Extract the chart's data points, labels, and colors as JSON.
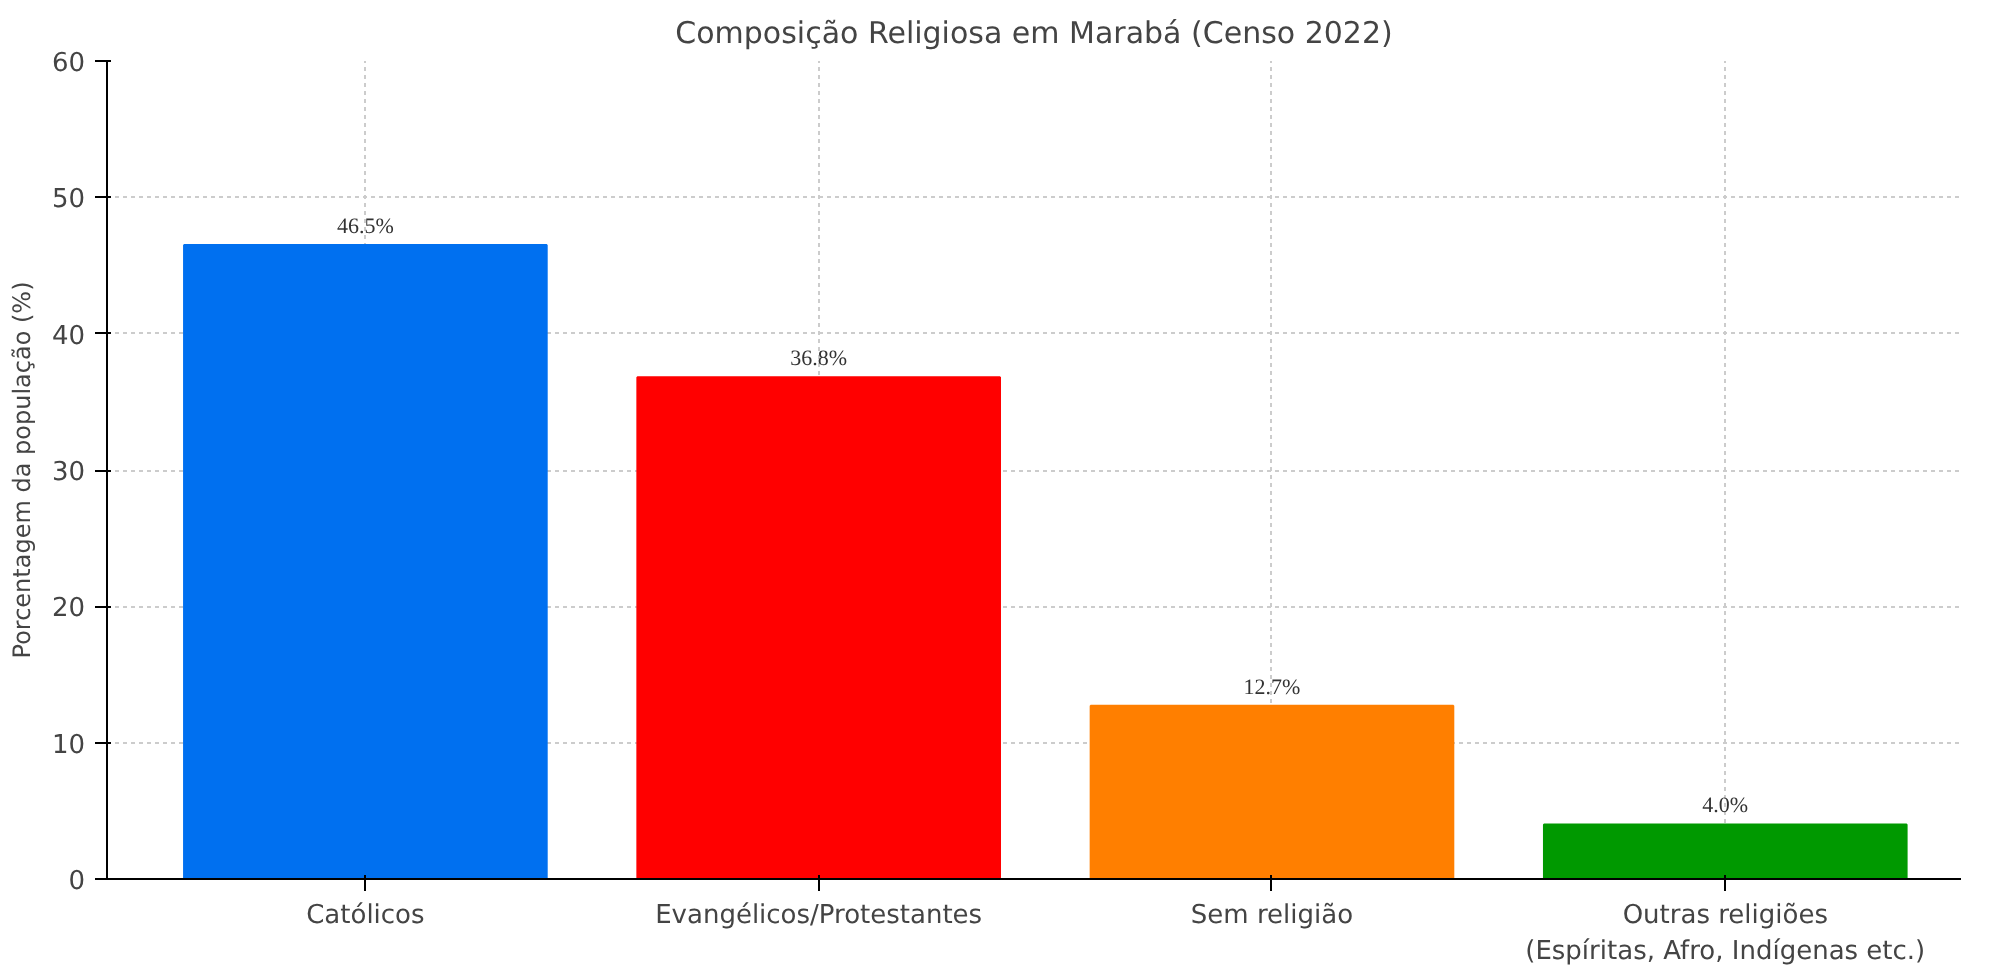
{
  "chart_data": {
    "type": "bar",
    "title": "Composição Religiosa em Marabá (Censo 2022)",
    "ylabel": "Porcentagem da população (%)",
    "categories": [
      "Católicos",
      "Evangélicos/Protestantes",
      "Sem religião",
      "Outras religiões\n(Espíritas, Afro, Indígenas etc.)"
    ],
    "values": [
      46.5,
      36.8,
      12.7,
      4.0
    ],
    "colors": [
      "#0070f0",
      "#ff0000",
      "#ff7f00",
      "#009900"
    ],
    "value_labels": [
      "46.5%",
      "36.8%",
      "12.7%",
      "4.0%"
    ],
    "ylim": [
      0,
      60
    ],
    "yticks": [
      0,
      10,
      20,
      30,
      40,
      50,
      60
    ],
    "grid": true
  }
}
